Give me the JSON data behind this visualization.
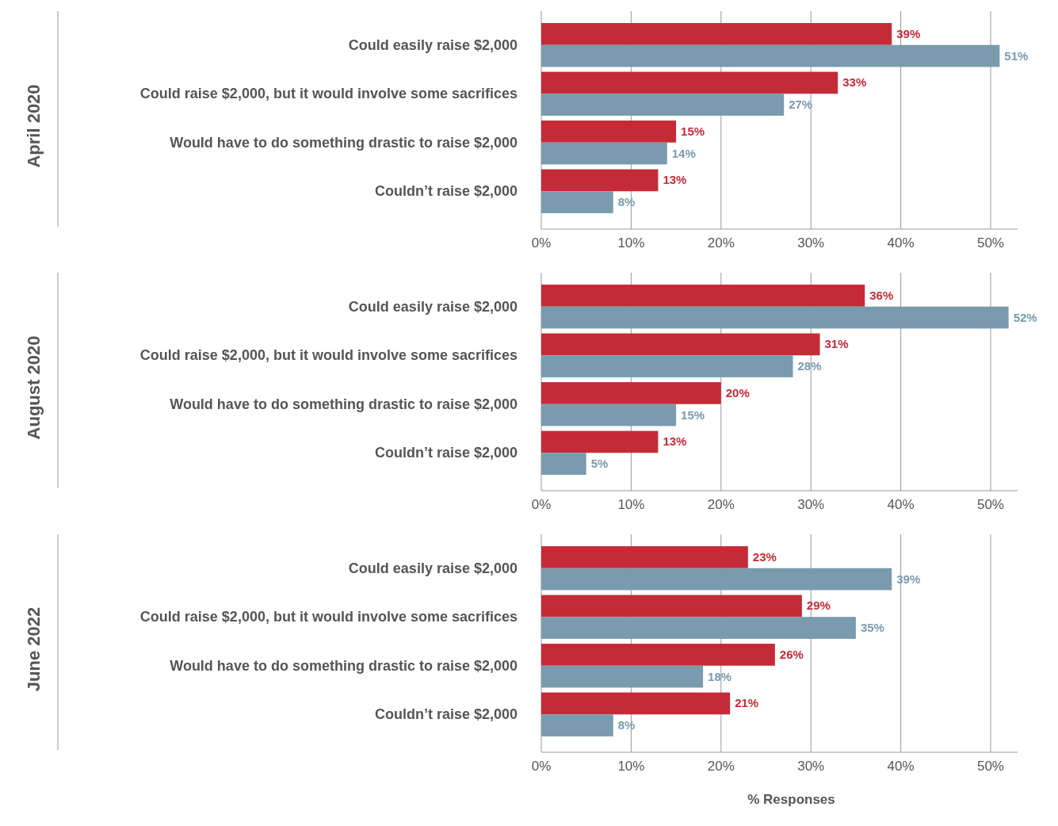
{
  "chart_data": [
    {
      "type": "bar",
      "orientation": "horizontal",
      "title": "April 2020",
      "categories": [
        "Could easily raise $2,000",
        "Could raise $2,000, but it would involve some sacrifices",
        "Would have to do something drastic to raise $2,000",
        "Couldn’t raise $2,000"
      ],
      "series": [
        {
          "color": "#c42b37",
          "values": [
            39,
            33,
            15,
            13
          ],
          "value_labels": [
            "39%",
            "33%",
            "15%",
            "13%"
          ]
        },
        {
          "color": "#7a9aae",
          "values": [
            51,
            27,
            14,
            8
          ],
          "value_labels": [
            "51%",
            "27%",
            "14%",
            "8%"
          ]
        }
      ],
      "xlim": [
        0,
        53
      ],
      "xticks": [
        {
          "value": 0,
          "label": "0%"
        },
        {
          "value": 10,
          "label": "10%"
        },
        {
          "value": 20,
          "label": "20%"
        },
        {
          "value": 30,
          "label": "30%"
        },
        {
          "value": 40,
          "label": "40%"
        },
        {
          "value": 50,
          "label": "50%"
        }
      ],
      "grid": "x"
    },
    {
      "type": "bar",
      "orientation": "horizontal",
      "title": "August 2020",
      "categories": [
        "Could easily raise $2,000",
        "Could raise $2,000, but it would involve some sacrifices",
        "Would have to do something drastic to raise $2,000",
        "Couldn’t raise $2,000"
      ],
      "series": [
        {
          "color": "#c42b37",
          "values": [
            36,
            31,
            20,
            13
          ],
          "value_labels": [
            "36%",
            "31%",
            "20%",
            "13%"
          ]
        },
        {
          "color": "#7a9aae",
          "values": [
            52,
            28,
            15,
            5
          ],
          "value_labels": [
            "52%",
            "28%",
            "15%",
            "5%"
          ]
        }
      ],
      "xlim": [
        0,
        53
      ],
      "xticks": [
        {
          "value": 0,
          "label": "0%"
        },
        {
          "value": 10,
          "label": "10%"
        },
        {
          "value": 20,
          "label": "20%"
        },
        {
          "value": 30,
          "label": "30%"
        },
        {
          "value": 40,
          "label": "40%"
        },
        {
          "value": 50,
          "label": "50%"
        }
      ],
      "grid": "x"
    },
    {
      "type": "bar",
      "orientation": "horizontal",
      "title": "June 2022",
      "xlabel": "% Responses",
      "categories": [
        "Could easily raise $2,000",
        "Could raise $2,000, but it would involve some sacrifices",
        "Would have to do something drastic to raise $2,000",
        "Couldn’t raise $2,000"
      ],
      "series": [
        {
          "color": "#c42b37",
          "values": [
            23,
            29,
            26,
            21
          ],
          "value_labels": [
            "23%",
            "29%",
            "26%",
            "21%"
          ]
        },
        {
          "color": "#7a9aae",
          "values": [
            39,
            35,
            18,
            8
          ],
          "value_labels": [
            "39%",
            "35%",
            "18%",
            "8%"
          ]
        }
      ],
      "xlim": [
        0,
        53
      ],
      "xticks": [
        {
          "value": 0,
          "label": "0%"
        },
        {
          "value": 10,
          "label": "10%"
        },
        {
          "value": 20,
          "label": "20%"
        },
        {
          "value": 30,
          "label": "30%"
        },
        {
          "value": 40,
          "label": "40%"
        },
        {
          "value": 50,
          "label": "50%"
        }
      ],
      "grid": "x"
    }
  ]
}
